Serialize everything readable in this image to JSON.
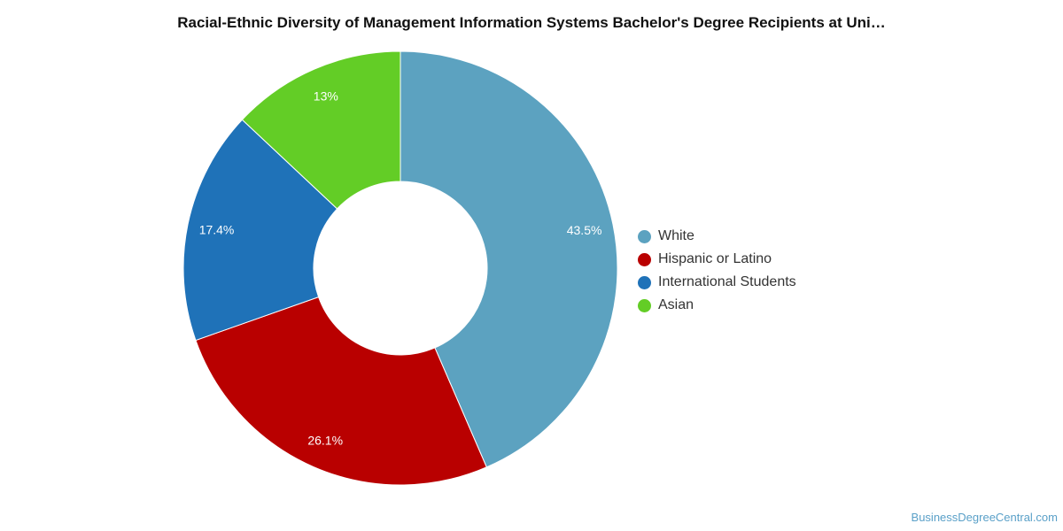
{
  "chart_data": {
    "type": "pie",
    "variant": "donut",
    "title": "Racial-Ethnic Diversity of Management Information Systems Bachelor's Degree Recipients at Uni…",
    "slices": [
      {
        "label": "White",
        "value": 43.5,
        "display": "43.5%",
        "color": "#5ca2c0"
      },
      {
        "label": "Hispanic or Latino",
        "value": 26.1,
        "display": "26.1%",
        "color": "#b90000"
      },
      {
        "label": "International Students",
        "value": 17.4,
        "display": "17.4%",
        "color": "#1f72b8"
      },
      {
        "label": "Asian",
        "value": 13.0,
        "display": "13%",
        "color": "#63cd26"
      }
    ],
    "legend_position": "right"
  },
  "watermark": "BusinessDegreeCentral.com"
}
